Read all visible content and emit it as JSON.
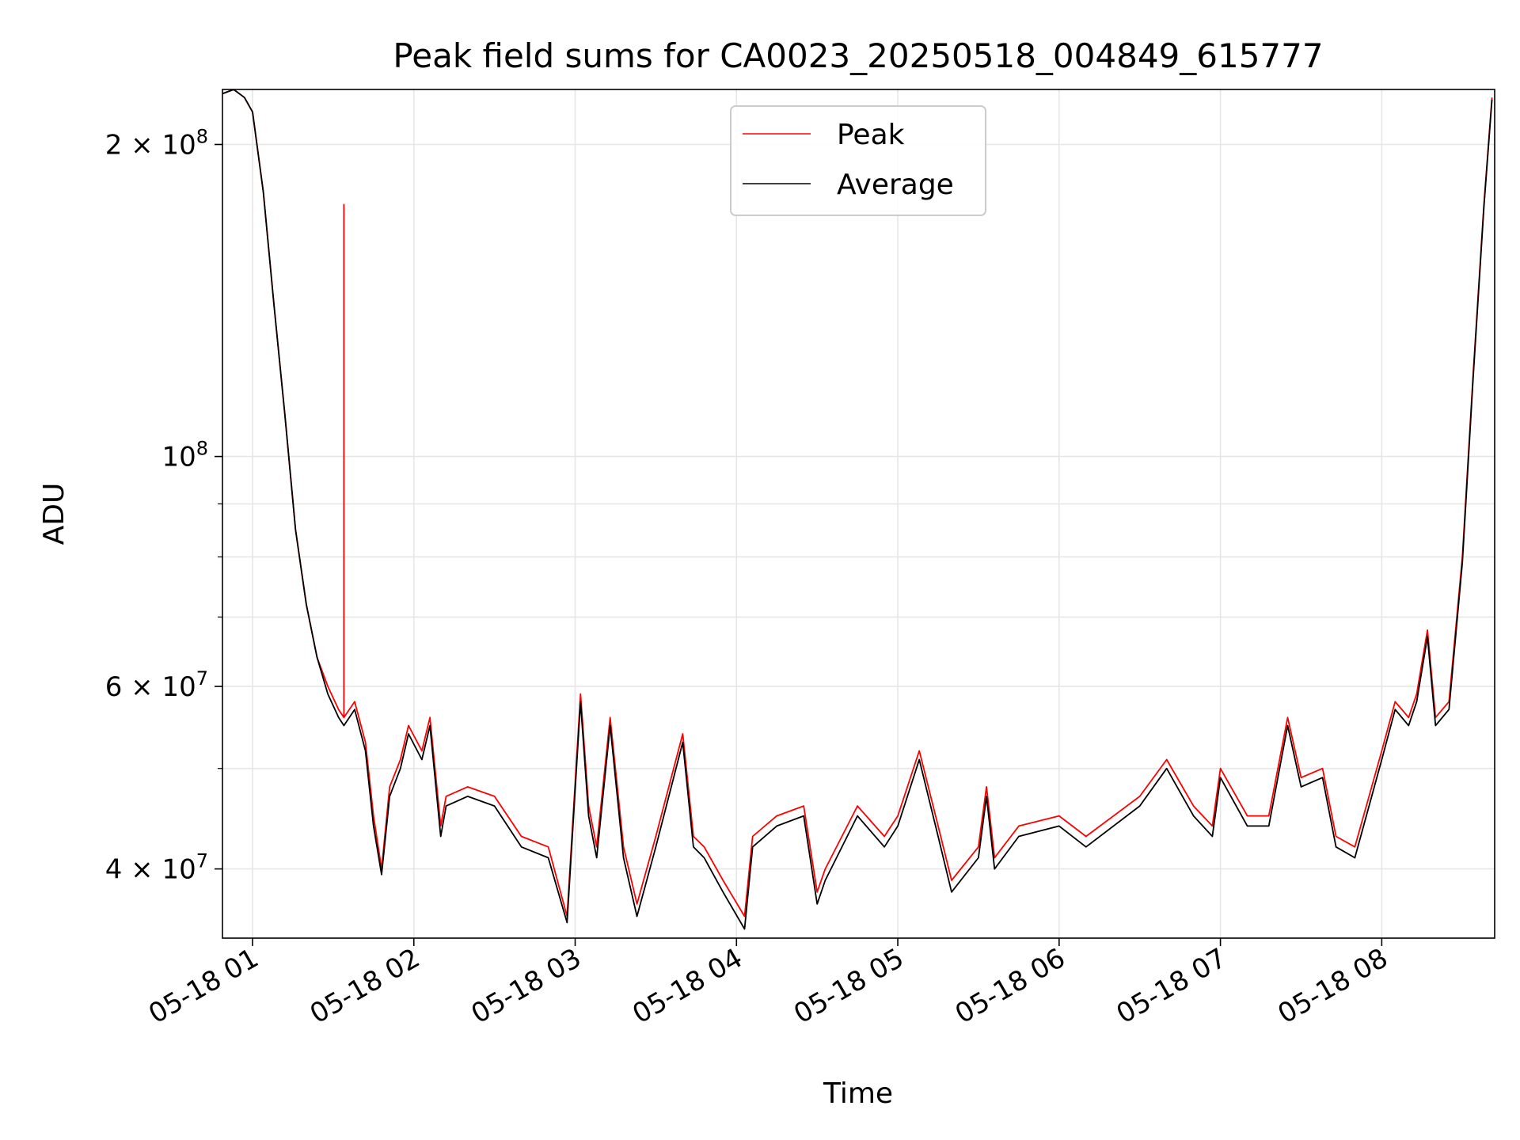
{
  "chart_data": {
    "type": "line",
    "title": "Peak field sums for CA0023_20250518_004849_615777",
    "xlabel": "Time",
    "ylabel": "ADU",
    "xlim": [
      "2025-05-18T00:48:49",
      "2025-05-18T08:42:00"
    ],
    "ylim": [
      34300000,
      226000000
    ],
    "yscale": "log",
    "grid": true,
    "legend_position": "top-center",
    "x_ticks": [
      {
        "t": "2025-05-18T01:00",
        "label": "05-18 01"
      },
      {
        "t": "2025-05-18T02:00",
        "label": "05-18 02"
      },
      {
        "t": "2025-05-18T03:00",
        "label": "05-18 03"
      },
      {
        "t": "2025-05-18T04:00",
        "label": "05-18 04"
      },
      {
        "t": "2025-05-18T05:00",
        "label": "05-18 05"
      },
      {
        "t": "2025-05-18T06:00",
        "label": "05-18 06"
      },
      {
        "t": "2025-05-18T07:00",
        "label": "05-18 07"
      },
      {
        "t": "2025-05-18T08:00",
        "label": "05-18 08"
      }
    ],
    "y_ticks": [
      {
        "v": 200000000,
        "mant": "2",
        "exp": "8"
      },
      {
        "v": 100000000,
        "mant": "",
        "exp": "8"
      },
      {
        "v": 60000000,
        "mant": "6",
        "exp": "7"
      },
      {
        "v": 40000000,
        "mant": "4",
        "exp": "7"
      }
    ],
    "y_minor_ticks": [
      90000000,
      80000000,
      70000000,
      50000000
    ],
    "series": [
      {
        "name": "Peak",
        "color": "#ff0000",
        "x": [
          "2025-05-18T00:49",
          "2025-05-18T00:53",
          "2025-05-18T00:57",
          "2025-05-18T01:00",
          "2025-05-18T01:04",
          "2025-05-18T01:08",
          "2025-05-18T01:12",
          "2025-05-18T01:16",
          "2025-05-18T01:20",
          "2025-05-18T01:24",
          "2025-05-18T01:28",
          "2025-05-18T01:32",
          "2025-05-18T01:34",
          "2025-05-18T01:34",
          "2025-05-18T01:34",
          "2025-05-18T01:38",
          "2025-05-18T01:42",
          "2025-05-18T01:45",
          "2025-05-18T01:48",
          "2025-05-18T01:51",
          "2025-05-18T01:55",
          "2025-05-18T01:58",
          "2025-05-18T02:03",
          "2025-05-18T02:06",
          "2025-05-18T02:10",
          "2025-05-18T02:12",
          "2025-05-18T02:20",
          "2025-05-18T02:30",
          "2025-05-18T02:40",
          "2025-05-18T02:50",
          "2025-05-18T02:57",
          "2025-05-18T03:02",
          "2025-05-18T03:05",
          "2025-05-18T03:08",
          "2025-05-18T03:13",
          "2025-05-18T03:18",
          "2025-05-18T03:23",
          "2025-05-18T03:30",
          "2025-05-18T03:40",
          "2025-05-18T03:44",
          "2025-05-18T03:48",
          "2025-05-18T03:55",
          "2025-05-18T04:03",
          "2025-05-18T04:06",
          "2025-05-18T04:15",
          "2025-05-18T04:25",
          "2025-05-18T04:30",
          "2025-05-18T04:33",
          "2025-05-18T04:45",
          "2025-05-18T04:55",
          "2025-05-18T05:00",
          "2025-05-18T05:08",
          "2025-05-18T05:15",
          "2025-05-18T05:20",
          "2025-05-18T05:30",
          "2025-05-18T05:33",
          "2025-05-18T05:36",
          "2025-05-18T05:45",
          "2025-05-18T06:00",
          "2025-05-18T06:10",
          "2025-05-18T06:30",
          "2025-05-18T06:40",
          "2025-05-18T06:50",
          "2025-05-18T06:57",
          "2025-05-18T07:00",
          "2025-05-18T07:10",
          "2025-05-18T07:18",
          "2025-05-18T07:25",
          "2025-05-18T07:30",
          "2025-05-18T07:38",
          "2025-05-18T07:43",
          "2025-05-18T07:50",
          "2025-05-18T08:00",
          "2025-05-18T08:05",
          "2025-05-18T08:10",
          "2025-05-18T08:13",
          "2025-05-18T08:17",
          "2025-05-18T08:20",
          "2025-05-18T08:25",
          "2025-05-18T08:30",
          "2025-05-18T08:34",
          "2025-05-18T08:38",
          "2025-05-18T08:41"
        ],
        "y": [
          224000000,
          226000000,
          222000000,
          215000000,
          180000000,
          140000000,
          110000000,
          85000000,
          72000000,
          64000000,
          60000000,
          57000000,
          56000000,
          175000000,
          56000000,
          58000000,
          53000000,
          45000000,
          40000000,
          48000000,
          51000000,
          55000000,
          52000000,
          56000000,
          44000000,
          47000000,
          48000000,
          47000000,
          43000000,
          42000000,
          36000000,
          59000000,
          46000000,
          42000000,
          56000000,
          42000000,
          37000000,
          43000000,
          54000000,
          43000000,
          42000000,
          39000000,
          36000000,
          43000000,
          45000000,
          46000000,
          38000000,
          40000000,
          46000000,
          43000000,
          45000000,
          52000000,
          44000000,
          39000000,
          42000000,
          48000000,
          41000000,
          44000000,
          45000000,
          43000000,
          47000000,
          51000000,
          46000000,
          44000000,
          50000000,
          45000000,
          45000000,
          56000000,
          49000000,
          50000000,
          43000000,
          42000000,
          52000000,
          58000000,
          56000000,
          59000000,
          68000000,
          56000000,
          58000000,
          80000000,
          120000000,
          175000000,
          222000000
        ]
      },
      {
        "name": "Average",
        "color": "#000000",
        "x": [
          "2025-05-18T00:49",
          "2025-05-18T00:53",
          "2025-05-18T00:57",
          "2025-05-18T01:00",
          "2025-05-18T01:04",
          "2025-05-18T01:08",
          "2025-05-18T01:12",
          "2025-05-18T01:16",
          "2025-05-18T01:20",
          "2025-05-18T01:24",
          "2025-05-18T01:28",
          "2025-05-18T01:32",
          "2025-05-18T01:34",
          "2025-05-18T01:38",
          "2025-05-18T01:42",
          "2025-05-18T01:45",
          "2025-05-18T01:48",
          "2025-05-18T01:51",
          "2025-05-18T01:55",
          "2025-05-18T01:58",
          "2025-05-18T02:03",
          "2025-05-18T02:06",
          "2025-05-18T02:10",
          "2025-05-18T02:12",
          "2025-05-18T02:20",
          "2025-05-18T02:30",
          "2025-05-18T02:40",
          "2025-05-18T02:50",
          "2025-05-18T02:57",
          "2025-05-18T03:02",
          "2025-05-18T03:05",
          "2025-05-18T03:08",
          "2025-05-18T03:13",
          "2025-05-18T03:18",
          "2025-05-18T03:23",
          "2025-05-18T03:30",
          "2025-05-18T03:40",
          "2025-05-18T03:44",
          "2025-05-18T03:48",
          "2025-05-18T03:55",
          "2025-05-18T04:03",
          "2025-05-18T04:06",
          "2025-05-18T04:15",
          "2025-05-18T04:25",
          "2025-05-18T04:30",
          "2025-05-18T04:33",
          "2025-05-18T04:45",
          "2025-05-18T04:55",
          "2025-05-18T05:00",
          "2025-05-18T05:08",
          "2025-05-18T05:15",
          "2025-05-18T05:20",
          "2025-05-18T05:30",
          "2025-05-18T05:33",
          "2025-05-18T05:36",
          "2025-05-18T05:45",
          "2025-05-18T06:00",
          "2025-05-18T06:10",
          "2025-05-18T06:30",
          "2025-05-18T06:40",
          "2025-05-18T06:50",
          "2025-05-18T06:57",
          "2025-05-18T07:00",
          "2025-05-18T07:10",
          "2025-05-18T07:18",
          "2025-05-18T07:25",
          "2025-05-18T07:30",
          "2025-05-18T07:38",
          "2025-05-18T07:43",
          "2025-05-18T07:50",
          "2025-05-18T08:00",
          "2025-05-18T08:05",
          "2025-05-18T08:10",
          "2025-05-18T08:13",
          "2025-05-18T08:17",
          "2025-05-18T08:20",
          "2025-05-18T08:25",
          "2025-05-18T08:30",
          "2025-05-18T08:34",
          "2025-05-18T08:38",
          "2025-05-18T08:41"
        ],
        "y": [
          224000000,
          226000000,
          222000000,
          215000000,
          180000000,
          140000000,
          110000000,
          85000000,
          72000000,
          64000000,
          59000000,
          56000000,
          55000000,
          57000000,
          52000000,
          44000000,
          39500000,
          47000000,
          50000000,
          54000000,
          51000000,
          55000000,
          43000000,
          46000000,
          47000000,
          46000000,
          42000000,
          41000000,
          35500000,
          58000000,
          45000000,
          41000000,
          55000000,
          41000000,
          36000000,
          42000000,
          53000000,
          42000000,
          41000000,
          38000000,
          35000000,
          42000000,
          44000000,
          45000000,
          37000000,
          39000000,
          45000000,
          42000000,
          44000000,
          51000000,
          43000000,
          38000000,
          41000000,
          47000000,
          40000000,
          43000000,
          44000000,
          42000000,
          46000000,
          50000000,
          45000000,
          43000000,
          49000000,
          44000000,
          44000000,
          55000000,
          48000000,
          49000000,
          42000000,
          41000000,
          51000000,
          57000000,
          55000000,
          58000000,
          67000000,
          55000000,
          57000000,
          79000000,
          119000000,
          174000000,
          221000000
        ]
      }
    ]
  }
}
